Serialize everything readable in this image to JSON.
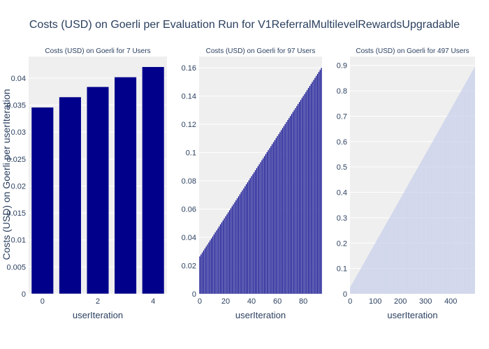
{
  "title": "Costs (USD) on Goerli per Evaluation Run for V1ReferralMultilevelRewardsUpgradable",
  "ylabel": "Costs (USD) on Goerli per userIteration",
  "colors": {
    "bar_dark": "#00008B",
    "bar_light": "#C5CDEB",
    "plot_bg": "#EFEFEF",
    "grid": "#FFFFFF",
    "text": "#2A3F5F"
  },
  "chart_data": [
    {
      "type": "bar",
      "title": "Costs (USD) on Goerli for 7 Users",
      "xlabel": "userIteration",
      "x": [
        0,
        1,
        2,
        3,
        4
      ],
      "values": [
        0.0346,
        0.0365,
        0.0384,
        0.0402,
        0.0421
      ],
      "xlim": [
        -0.5,
        4.5
      ],
      "ylim": [
        0,
        0.044
      ],
      "xticks": [
        0,
        2,
        4
      ],
      "yticks": [
        0,
        0.005,
        0.01,
        0.015,
        0.02,
        0.025,
        0.03,
        0.035,
        0.04
      ],
      "ytick_labels": [
        "0",
        "0.005",
        "0.01",
        "0.015",
        "0.02",
        "0.025",
        "0.03",
        "0.035",
        "0.04"
      ],
      "grid": true
    },
    {
      "type": "bar",
      "title": "Costs (USD) on Goerli for 97 Users",
      "xlabel": "userIteration",
      "x_start": 0,
      "x_end": 94,
      "y_start": 0.0265,
      "y_end": 0.16,
      "xlim": [
        -0.5,
        94.5
      ],
      "ylim": [
        0,
        0.168
      ],
      "xticks": [
        0,
        20,
        40,
        60,
        80
      ],
      "yticks": [
        0,
        0.02,
        0.04,
        0.06,
        0.08,
        0.1,
        0.12,
        0.14,
        0.16
      ],
      "ytick_labels": [
        "0",
        "0.02",
        "0.04",
        "0.06",
        "0.08",
        "0.1",
        "0.12",
        "0.14",
        "0.16"
      ],
      "grid": true
    },
    {
      "type": "bar",
      "title": "Costs (USD) on Goerli for 497 Users",
      "xlabel": "userIteration",
      "x_start": 0,
      "x_end": 496,
      "y_start": 0.025,
      "y_end": 0.895,
      "xlim": [
        -0.5,
        496.5
      ],
      "ylim": [
        0,
        0.935
      ],
      "xticks": [
        0,
        100,
        200,
        300,
        400
      ],
      "yticks": [
        0,
        0.1,
        0.2,
        0.3,
        0.4,
        0.5,
        0.6,
        0.7,
        0.8,
        0.9
      ],
      "ytick_labels": [
        "0",
        "0.1",
        "0.2",
        "0.3",
        "0.4",
        "0.5",
        "0.6",
        "0.7",
        "0.8",
        "0.9"
      ],
      "grid": true
    }
  ]
}
